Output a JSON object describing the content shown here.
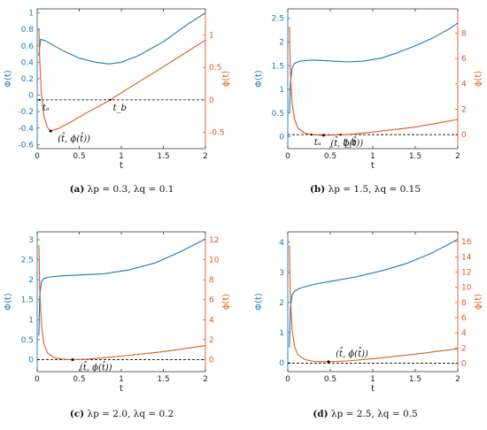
{
  "colors": {
    "phi_big": "#1f77b4",
    "phi_small": "#e05a1e",
    "axis": "#333333",
    "zero_line": "#000000"
  },
  "captions": [
    {
      "letter": "(a)",
      "text": "λp = 0.3, λq = 0.1"
    },
    {
      "letter": "(b)",
      "text": "λp = 1.5, λq = 0.15"
    },
    {
      "letter": "(c)",
      "text": "λp = 2.0, λq = 0.2"
    },
    {
      "letter": "(d)",
      "text": "λp = 2.5, λq = 0.5"
    }
  ],
  "chart_data": [
    {
      "type": "line",
      "xlabel": "t",
      "ylabel_left": "Φ(t)",
      "ylabel_right": "ϕ(t)",
      "xlim": [
        0,
        2
      ],
      "ylim_left": [
        -0.65,
        1.05
      ],
      "ylim_right": [
        -0.75,
        1.4
      ],
      "xticks": [
        0,
        0.5,
        1,
        1.5,
        2
      ],
      "yticks_left": [
        -0.6,
        -0.4,
        -0.2,
        0,
        0.2,
        0.4,
        0.6,
        0.8,
        1
      ],
      "yticks_right": [
        -0.5,
        0,
        0.5,
        1
      ],
      "series": [
        {
          "axis": "left",
          "x": [
            0.02,
            0.04,
            0.1,
            0.2,
            0.35,
            0.5,
            0.7,
            0.85,
            1.0,
            1.2,
            1.5,
            1.8,
            2.0
          ],
          "values": [
            0.48,
            0.68,
            0.66,
            0.6,
            0.52,
            0.45,
            0.4,
            0.38,
            0.4,
            0.48,
            0.65,
            0.87,
            1.0
          ]
        },
        {
          "axis": "right",
          "x": [
            0.02,
            0.03,
            0.05,
            0.08,
            0.12,
            0.16,
            0.25,
            0.4,
            0.6,
            0.8,
            0.87,
            1.0,
            1.3,
            1.6,
            2.0
          ],
          "values": [
            1.1,
            0.6,
            0.1,
            -0.25,
            -0.42,
            -0.48,
            -0.44,
            -0.34,
            -0.19,
            -0.05,
            0.0,
            0.11,
            0.35,
            0.59,
            0.92
          ]
        }
      ],
      "annotations": [
        {
          "label": "tₐ",
          "x": 0.03,
          "y": 0.0,
          "axis": "right"
        },
        {
          "label": "t_b",
          "x": 0.87,
          "y": 0.0,
          "axis": "right"
        },
        {
          "label": "(t̂, ϕ(t̂))",
          "x": 0.16,
          "y": -0.48,
          "axis": "right"
        }
      ]
    },
    {
      "type": "line",
      "xlabel": "t",
      "ylabel_left": "Φ(t)",
      "ylabel_right": "ϕ(t)",
      "xlim": [
        0,
        2
      ],
      "ylim_left": [
        -0.25,
        2.7
      ],
      "ylim_right": [
        -1.1,
        9.9
      ],
      "xticks": [
        0,
        0.5,
        1,
        1.5,
        2
      ],
      "yticks_left": [
        0,
        0.5,
        1,
        1.5,
        2,
        2.5
      ],
      "yticks_right": [
        0,
        2,
        4,
        6,
        8
      ],
      "series": [
        {
          "axis": "left",
          "x": [
            0.02,
            0.03,
            0.05,
            0.08,
            0.15,
            0.3,
            0.5,
            0.7,
            0.9,
            1.1,
            1.3,
            1.5,
            1.7,
            1.9,
            2.0
          ],
          "values": [
            0.5,
            1.1,
            1.45,
            1.55,
            1.6,
            1.62,
            1.6,
            1.58,
            1.6,
            1.66,
            1.78,
            1.92,
            2.08,
            2.28,
            2.4
          ]
        },
        {
          "axis": "right",
          "x": [
            0.02,
            0.03,
            0.05,
            0.08,
            0.12,
            0.2,
            0.3,
            0.4,
            0.55,
            0.7,
            1.0,
            1.5,
            2.0
          ],
          "values": [
            8.5,
            5.0,
            2.5,
            1.2,
            0.5,
            0.12,
            0.0,
            -0.05,
            -0.03,
            0.0,
            0.2,
            0.6,
            1.2
          ]
        }
      ],
      "annotations": [
        {
          "label": "tₐ",
          "x": 0.28,
          "y": 0.0,
          "axis": "right"
        },
        {
          "label": "t_b",
          "x": 0.62,
          "y": 0.0,
          "axis": "right"
        },
        {
          "label": "(t̂, ϕ(t̂))",
          "x": 0.42,
          "y": -0.05,
          "axis": "right"
        }
      ]
    },
    {
      "type": "line",
      "xlabel": "t",
      "ylabel_left": "Φ(t)",
      "ylabel_right": "ϕ(t)",
      "xlim": [
        0,
        2
      ],
      "ylim_left": [
        -0.3,
        3.2
      ],
      "ylim_right": [
        -1.2,
        12.8
      ],
      "xticks": [
        0,
        0.5,
        1,
        1.5,
        2
      ],
      "yticks_left": [
        0,
        0.5,
        1,
        1.5,
        2,
        2.5,
        3
      ],
      "yticks_right": [
        0,
        2,
        4,
        6,
        8,
        10,
        12
      ],
      "series": [
        {
          "axis": "left",
          "x": [
            0.02,
            0.03,
            0.05,
            0.08,
            0.15,
            0.3,
            0.5,
            0.8,
            1.1,
            1.4,
            1.7,
            2.0
          ],
          "values": [
            0.6,
            1.6,
            1.95,
            2.03,
            2.07,
            2.1,
            2.12,
            2.15,
            2.25,
            2.42,
            2.7,
            3.02
          ]
        },
        {
          "axis": "right",
          "x": [
            0.02,
            0.03,
            0.05,
            0.08,
            0.12,
            0.2,
            0.3,
            0.42,
            0.6,
            1.0,
            1.5,
            2.0
          ],
          "values": [
            11.5,
            7.0,
            3.5,
            1.6,
            0.7,
            0.2,
            0.05,
            0.0,
            0.05,
            0.35,
            0.8,
            1.4
          ]
        }
      ],
      "annotations": [
        {
          "label": "(t̂, ϕ(t̂))",
          "x": 0.42,
          "y": 0.0,
          "axis": "right"
        }
      ]
    },
    {
      "type": "line",
      "xlabel": "t",
      "ylabel_left": "Φ(t)",
      "ylabel_right": "ϕ(t)",
      "xlim": [
        0,
        2
      ],
      "ylim_left": [
        -0.3,
        4.35
      ],
      "ylim_right": [
        -1.1,
        17.3
      ],
      "xticks": [
        0,
        0.5,
        1,
        1.5,
        2
      ],
      "yticks_left": [
        0,
        1,
        2,
        3,
        4
      ],
      "yticks_right": [
        0,
        2,
        4,
        6,
        8,
        10,
        12,
        14,
        16
      ],
      "series": [
        {
          "axis": "left",
          "x": [
            0.02,
            0.03,
            0.05,
            0.08,
            0.15,
            0.3,
            0.5,
            0.8,
            1.1,
            1.4,
            1.7,
            2.0
          ],
          "values": [
            0.5,
            1.8,
            2.25,
            2.38,
            2.48,
            2.6,
            2.7,
            2.85,
            3.05,
            3.3,
            3.65,
            4.1
          ]
        },
        {
          "axis": "right",
          "x": [
            0.02,
            0.03,
            0.05,
            0.08,
            0.12,
            0.2,
            0.3,
            0.48,
            0.7,
            1.0,
            1.5,
            2.0
          ],
          "values": [
            15.5,
            9.0,
            4.5,
            2.2,
            1.1,
            0.5,
            0.25,
            0.2,
            0.3,
            0.6,
            1.2,
            1.9
          ]
        }
      ],
      "annotations": [
        {
          "label": "(t̂, ϕ(t̂))",
          "x": 0.48,
          "y": 0.2,
          "axis": "right"
        }
      ]
    }
  ]
}
